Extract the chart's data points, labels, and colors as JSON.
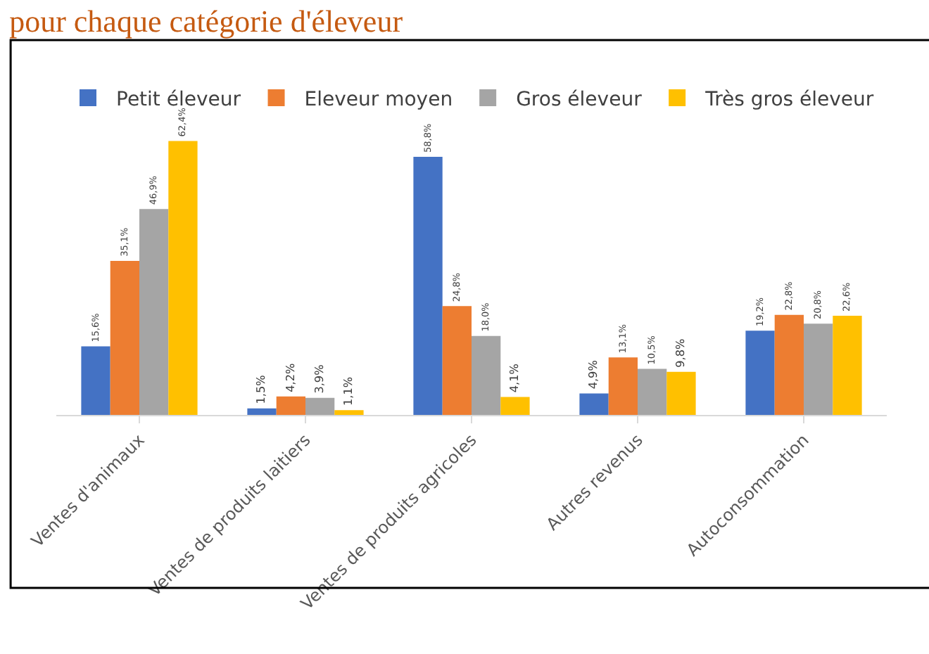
{
  "chart_data": {
    "type": "bar",
    "title": "pour chaque catégorie d'éleveur",
    "categories": [
      "Ventes d'animaux",
      "Ventes de produits laitiers",
      "Ventes de produits agricoles",
      "Autres revenus",
      "Autoconsommation"
    ],
    "series": [
      {
        "name": "Petit éleveur",
        "color": "#4472c4",
        "values": [
          15.6,
          1.5,
          58.8,
          4.9,
          19.2
        ],
        "value_labels": [
          "15,6%",
          "1,5%",
          "58,8%",
          "4,9%",
          "19,2%"
        ]
      },
      {
        "name": "Eleveur moyen",
        "color": "#ed7d31",
        "values": [
          35.1,
          4.2,
          24.8,
          13.1,
          22.8
        ],
        "value_labels": [
          "35,1%",
          "4,2%",
          "24,8%",
          "13,1%",
          "22,8%"
        ]
      },
      {
        "name": "Gros éleveur",
        "color": "#a5a5a5",
        "values": [
          46.9,
          3.9,
          18.0,
          10.5,
          20.8
        ],
        "value_labels": [
          "46,9%",
          "3,9%",
          "18,0%",
          "10,5%",
          "20,8%"
        ]
      },
      {
        "name": "Très gros éleveur",
        "color": "#ffc000",
        "values": [
          62.4,
          1.1,
          4.1,
          9.8,
          22.6
        ],
        "value_labels": [
          "62,4%",
          "1,1%",
          "4,1%",
          "9,8%",
          "22,6%"
        ]
      }
    ],
    "legend": "top",
    "grid": false
  }
}
